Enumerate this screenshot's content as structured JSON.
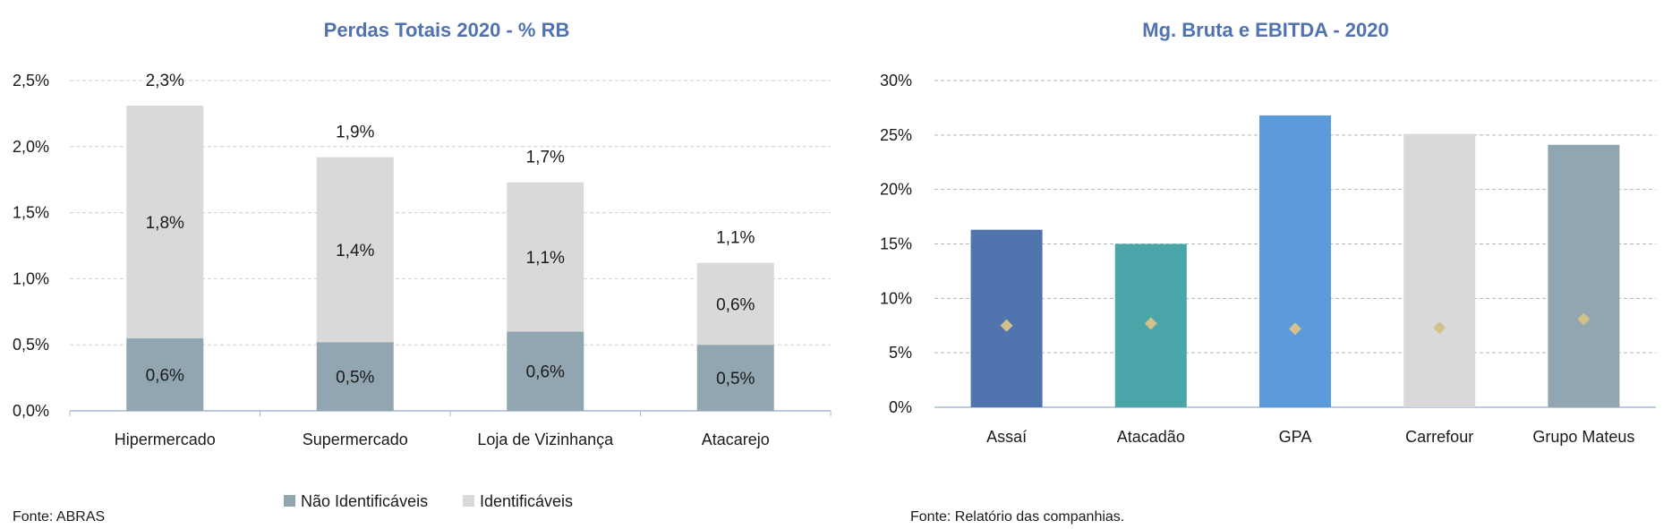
{
  "chart_data": [
    {
      "type": "bar",
      "stacked": true,
      "title": "Perdas Totais 2020 - % RB",
      "categories": [
        "Hipermercado",
        "Supermercado",
        "Loja de Vizinhança",
        "Atacarejo"
      ],
      "series": [
        {
          "name": "Não Identificáveis",
          "color": "#91a6b0",
          "values": [
            0.55,
            0.52,
            0.6,
            0.5
          ],
          "labels": [
            "0,6%",
            "0,5%",
            "0,6%",
            "0,5%"
          ]
        },
        {
          "name": "Identificáveis",
          "color": "#d9d9d9",
          "values": [
            1.76,
            1.4,
            1.13,
            0.62
          ],
          "labels": [
            "1,8%",
            "1,4%",
            "1,1%",
            "0,6%"
          ]
        }
      ],
      "totals": [
        "2,3%",
        "1,9%",
        "1,7%",
        "1,1%"
      ],
      "total_values": [
        2.31,
        1.92,
        1.73,
        1.12
      ],
      "yticks": [
        "0,0%",
        "0,5%",
        "1,0%",
        "1,5%",
        "2,0%",
        "2,5%"
      ],
      "ylim": [
        0,
        2.5
      ],
      "grid": true,
      "legend": "bottom",
      "source": "Fonte: ABRAS"
    },
    {
      "type": "bar",
      "title": "Mg. Bruta e EBITDA - 2020",
      "categories": [
        "Assaí",
        "Atacadão",
        "GPA",
        "Carrefour",
        "Grupo Mateus"
      ],
      "bar_colors": [
        "#4f74ae",
        "#4aa5a9",
        "#5b9bd9",
        "#d9d9d9",
        "#91a6b0"
      ],
      "bar_values": [
        16.3,
        15.0,
        26.8,
        25.1,
        24.1
      ],
      "marker_values": [
        7.5,
        7.7,
        7.2,
        7.3,
        8.1
      ],
      "marker_color": "#d4c08b",
      "yticks": [
        "0%",
        "5%",
        "10%",
        "15%",
        "20%",
        "25%",
        "30%"
      ],
      "ylim": [
        0,
        30
      ],
      "grid": true,
      "source": "Fonte: Relatório das companhias."
    }
  ]
}
